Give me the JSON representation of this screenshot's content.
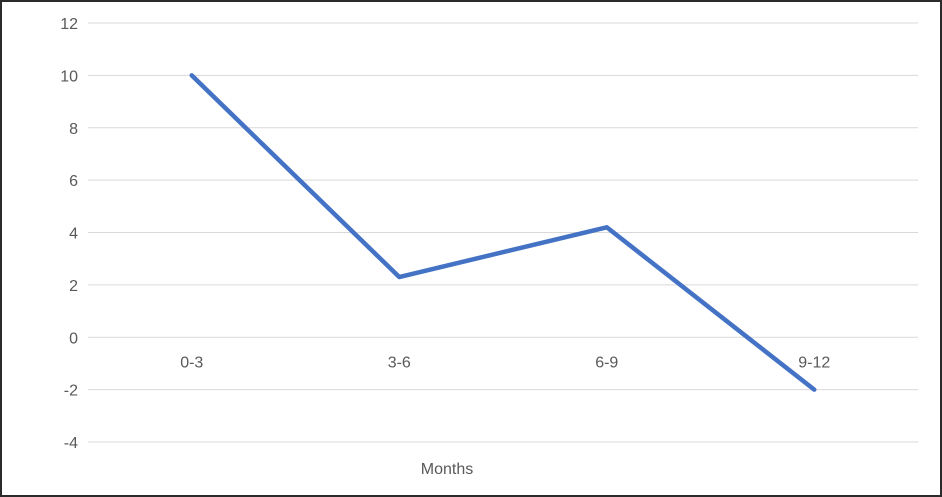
{
  "chart_data": {
    "type": "line",
    "title": "",
    "xlabel": "Months",
    "ylabel": "",
    "categories": [
      "0-3",
      "3-6",
      "6-9",
      "9-12"
    ],
    "series": [
      {
        "values": [
          10,
          2.3,
          4.2,
          -2
        ]
      }
    ],
    "ylim": [
      -4,
      12
    ],
    "ytick_step": 2,
    "yticks": [
      12,
      10,
      8,
      6,
      4,
      2,
      0,
      -2,
      -4
    ],
    "grid": true,
    "legend": false,
    "x_labels_below_zero_line": true,
    "colors": {
      "line": "#4472C4",
      "gridline": "#D9D9D9",
      "tick_label": "#595959",
      "axis_title": "#595959",
      "frame_border": "#2B2B2B",
      "background": "#FFFFFF"
    }
  }
}
